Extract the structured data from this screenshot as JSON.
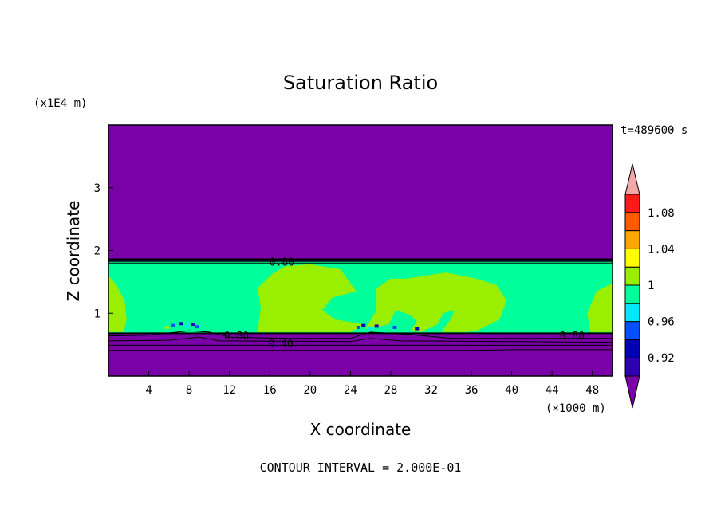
{
  "chart_data": {
    "type": "heatmap",
    "title": "Saturation Ratio",
    "xlabel": "X coordinate",
    "ylabel": "Z coordinate",
    "x_unit": "(×1000 m)",
    "y_unit": "(x1E4 m)",
    "time_label": "t=489600 s",
    "footer": "CONTOUR INTERVAL = 2.000E-01",
    "xlim": [
      0,
      50
    ],
    "ylim": [
      0,
      4
    ],
    "x_ticks": [
      4,
      8,
      12,
      16,
      20,
      24,
      28,
      32,
      36,
      40,
      44,
      48
    ],
    "y_ticks": [
      1,
      2,
      3
    ],
    "colorbar": {
      "labels": [
        "0.92",
        "0.96",
        "1",
        "1.04",
        "1.08"
      ],
      "colors": [
        "#7a00a8",
        "#2f00b3",
        "#0000b4",
        "#0050ff",
        "#00e7ff",
        "#00ff9a",
        "#9aee00",
        "#ffff00",
        "#ffa800",
        "#ff5a00",
        "#ff1a1a",
        "#f4a8a8"
      ]
    },
    "contour_labels": [
      {
        "text": "0.80",
        "x": 17.2,
        "y": 1.82
      },
      {
        "text": "0.80",
        "x": 12.7,
        "y": 0.65
      },
      {
        "text": "0.40",
        "x": 17.1,
        "y": 0.52
      },
      {
        "text": "0.80",
        "x": 46.0,
        "y": 0.65
      }
    ],
    "regions": {
      "layer_bottom": 0.68,
      "layer_top": 1.82,
      "background_color": "#7a00a8",
      "layer_color": "#00ff9a",
      "patch_color": "#9aee00"
    }
  }
}
